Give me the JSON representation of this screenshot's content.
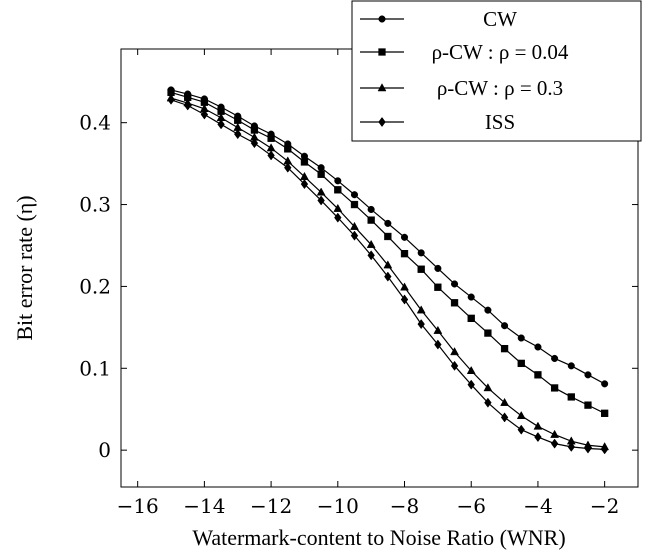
{
  "chart_data": {
    "type": "line",
    "xlabel": "Watermark-content to Noise Ratio (WNR)",
    "ylabel": "Bit error rate (η)",
    "xlim": [
      -16.5,
      -1
    ],
    "ylim": [
      -0.045,
      0.49
    ],
    "xticks": [
      -16,
      -14,
      -12,
      -10,
      -8,
      -6,
      -4,
      -2
    ],
    "yticks": [
      0,
      0.1,
      0.2,
      0.3,
      0.4
    ],
    "xtick_labels": [
      "−16",
      "−14",
      "−12",
      "−10",
      "−8",
      "−6",
      "−4",
      "−2"
    ],
    "ytick_labels": [
      "0",
      "0.1",
      "0.2",
      "0.3",
      "0.4"
    ],
    "legend_position": "top-right",
    "grid": false,
    "x": [
      -15,
      -14.5,
      -14,
      -13.5,
      -13,
      -12.5,
      -12,
      -11.5,
      -11,
      -10.5,
      -10,
      -9.5,
      -9,
      -8.5,
      -8,
      -7.5,
      -7,
      -6.5,
      -6,
      -5.5,
      -5,
      -4.5,
      -4,
      -3.5,
      -3,
      -2.5,
      -2
    ],
    "series": [
      {
        "name": "CW",
        "marker": "circle",
        "values": [
          0.44,
          0.435,
          0.429,
          0.419,
          0.408,
          0.396,
          0.386,
          0.374,
          0.359,
          0.345,
          0.329,
          0.312,
          0.294,
          0.277,
          0.26,
          0.241,
          0.222,
          0.203,
          0.187,
          0.171,
          0.152,
          0.137,
          0.126,
          0.112,
          0.103,
          0.092,
          0.081
        ]
      },
      {
        "name": "ρ-CW : ρ = 0.04",
        "marker": "square",
        "values": [
          0.437,
          0.431,
          0.425,
          0.414,
          0.403,
          0.391,
          0.381,
          0.368,
          0.352,
          0.337,
          0.318,
          0.3,
          0.281,
          0.261,
          0.24,
          0.221,
          0.199,
          0.18,
          0.161,
          0.143,
          0.124,
          0.106,
          0.092,
          0.076,
          0.065,
          0.055,
          0.045
        ]
      },
      {
        "name": "ρ-CW : ρ = 0.3",
        "marker": "triangle",
        "values": [
          0.43,
          0.424,
          0.417,
          0.406,
          0.394,
          0.382,
          0.369,
          0.353,
          0.334,
          0.315,
          0.295,
          0.273,
          0.251,
          0.226,
          0.199,
          0.171,
          0.146,
          0.12,
          0.097,
          0.076,
          0.058,
          0.042,
          0.029,
          0.019,
          0.011,
          0.006,
          0.004
        ]
      },
      {
        "name": "ISS",
        "marker": "diamond",
        "values": [
          0.428,
          0.421,
          0.41,
          0.398,
          0.386,
          0.375,
          0.36,
          0.345,
          0.325,
          0.305,
          0.284,
          0.262,
          0.238,
          0.212,
          0.184,
          0.154,
          0.129,
          0.103,
          0.08,
          0.058,
          0.04,
          0.025,
          0.016,
          0.008,
          0.004,
          0.002,
          0.001
        ]
      }
    ]
  }
}
